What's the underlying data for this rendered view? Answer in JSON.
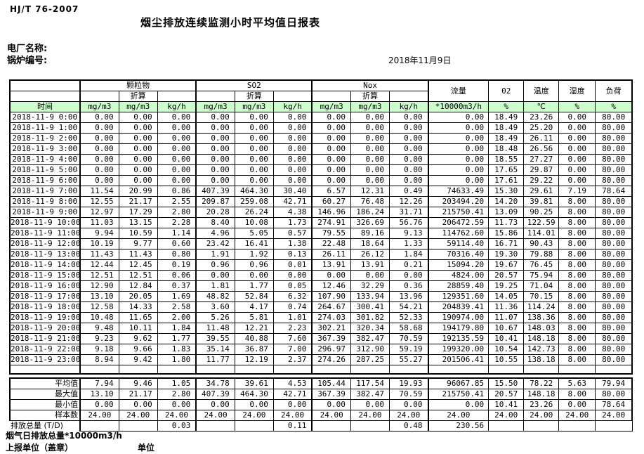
{
  "page": {
    "standard": "HJ/T  76-2007",
    "title": "烟尘排放连续监测小时平均值日报表",
    "plant_label": "电厂名称:",
    "boiler_label": "锅炉编号:",
    "date": "2018年11月9日"
  },
  "colors": {
    "header_green": "#ccffcc",
    "border": "#000000"
  },
  "table": {
    "groups": {
      "pm": "颗粒物",
      "so2": "SO2",
      "nox": "Nox",
      "flow": "流量",
      "o2": "02",
      "temp": "温度",
      "humidity": "湿度",
      "load": "负荷"
    },
    "subheader": {
      "converted": "折算"
    },
    "units": {
      "time": "时间",
      "mg": "mg/m3",
      "kgh": "kg/h",
      "flow": "*10000m3/h",
      "percent": "%",
      "celsius": "℃"
    },
    "rows": [
      [
        "2018-11-9 0:00",
        "0.00",
        "0.00",
        "0.00",
        "0.00",
        "0.00",
        "0.00",
        "0.00",
        "0.00",
        "0.00",
        "0.00",
        "18.49",
        "23.26",
        "0.00",
        "80.00"
      ],
      [
        "2018-11-9 1:00",
        "0.00",
        "0.00",
        "0.00",
        "0.00",
        "0.00",
        "0.00",
        "0.00",
        "0.00",
        "0.00",
        "0.00",
        "18.49",
        "25.20",
        "0.00",
        "80.00"
      ],
      [
        "2018-11-9 2:00",
        "0.00",
        "0.00",
        "0.00",
        "0.00",
        "0.00",
        "0.00",
        "0.00",
        "0.00",
        "0.00",
        "0.00",
        "18.49",
        "26.11",
        "0.00",
        "80.00"
      ],
      [
        "2018-11-9 3:00",
        "0.00",
        "0.00",
        "0.00",
        "0.00",
        "0.00",
        "0.00",
        "0.00",
        "0.00",
        "0.00",
        "0.00",
        "18.48",
        "26.56",
        "0.00",
        "80.00"
      ],
      [
        "2018-11-9 4:00",
        "0.00",
        "0.00",
        "0.00",
        "0.00",
        "0.00",
        "0.00",
        "0.00",
        "0.00",
        "0.00",
        "0.00",
        "18.55",
        "27.27",
        "0.00",
        "80.00"
      ],
      [
        "2018-11-9 5:00",
        "0.00",
        "0.00",
        "0.00",
        "0.00",
        "0.00",
        "0.00",
        "0.00",
        "0.00",
        "0.00",
        "0.00",
        "17.65",
        "29.87",
        "0.00",
        "80.00"
      ],
      [
        "2018-11-9 6:00",
        "0.00",
        "0.00",
        "0.00",
        "0.00",
        "0.00",
        "0.00",
        "0.00",
        "0.00",
        "0.00",
        "0.00",
        "17.61",
        "29.22",
        "0.00",
        "80.00"
      ],
      [
        "2018-11-9 7:00",
        "11.54",
        "20.99",
        "0.86",
        "407.39",
        "464.30",
        "30.40",
        "6.57",
        "12.31",
        "0.49",
        "74633.49",
        "15.30",
        "29.61",
        "7.19",
        "78.64"
      ],
      [
        "2018-11-9 8:00",
        "12.55",
        "21.17",
        "2.55",
        "209.87",
        "259.08",
        "42.71",
        "60.27",
        "76.48",
        "12.26",
        "203494.20",
        "14.20",
        "39.81",
        "8.00",
        "80.00"
      ],
      [
        "2018-11-9 9:00",
        "12.97",
        "17.29",
        "2.80",
        "20.28",
        "26.24",
        "4.38",
        "146.96",
        "186.24",
        "31.71",
        "215750.41",
        "13.09",
        "90.25",
        "8.00",
        "80.00"
      ],
      [
        "2018-11-9 10:00",
        "11.03",
        "13.15",
        "2.28",
        "8.40",
        "10.08",
        "1.73",
        "274.91",
        "326.69",
        "56.76",
        "206472.59",
        "11.73",
        "122.59",
        "8.00",
        "80.00"
      ],
      [
        "2018-11-9 11:00",
        "9.94",
        "10.59",
        "1.14",
        "4.96",
        "5.05",
        "0.57",
        "79.55",
        "89.16",
        "9.13",
        "114762.60",
        "15.86",
        "114.01",
        "8.00",
        "80.00"
      ],
      [
        "2018-11-9 12:00",
        "10.19",
        "9.77",
        "0.60",
        "23.42",
        "16.41",
        "1.38",
        "22.48",
        "18.64",
        "1.33",
        "59114.40",
        "16.71",
        "90.43",
        "8.00",
        "80.00"
      ],
      [
        "2018-11-9 13:00",
        "11.43",
        "11.43",
        "0.80",
        "1.91",
        "1.92",
        "0.13",
        "26.11",
        "26.12",
        "1.84",
        "70316.40",
        "19.30",
        "79.88",
        "8.00",
        "80.00"
      ],
      [
        "2018-11-9 14:00",
        "12.44",
        "12.45",
        "0.19",
        "0.96",
        "0.96",
        "0.01",
        "13.91",
        "13.91",
        "0.21",
        "15094.20",
        "19.67",
        "76.45",
        "8.00",
        "80.00"
      ],
      [
        "2018-11-9 15:00",
        "12.51",
        "12.51",
        "0.06",
        "0.00",
        "0.00",
        "0.00",
        "0.00",
        "0.00",
        "0.00",
        "4824.00",
        "20.57",
        "75.94",
        "8.00",
        "80.00"
      ],
      [
        "2018-11-9 16:00",
        "12.90",
        "12.84",
        "0.37",
        "1.81",
        "1.77",
        "0.05",
        "12.46",
        "32.29",
        "0.36",
        "28859.40",
        "19.25",
        "71.04",
        "8.00",
        "80.00"
      ],
      [
        "2018-11-9 17:00",
        "13.10",
        "20.05",
        "1.69",
        "48.82",
        "52.84",
        "6.32",
        "107.90",
        "133.94",
        "13.96",
        "129351.60",
        "14.05",
        "70.15",
        "8.00",
        "80.00"
      ],
      [
        "2018-11-9 18:00",
        "12.58",
        "14.33",
        "2.58",
        "3.60",
        "4.17",
        "0.74",
        "264.67",
        "300.41",
        "54.21",
        "204839.41",
        "11.36",
        "114.24",
        "8.00",
        "80.00"
      ],
      [
        "2018-11-9 19:00",
        "10.48",
        "11.65",
        "2.00",
        "5.26",
        "5.81",
        "1.01",
        "274.03",
        "301.82",
        "52.33",
        "190974.00",
        "11.07",
        "138.36",
        "8.00",
        "80.00"
      ],
      [
        "2018-11-9 20:00",
        "9.48",
        "10.11",
        "1.84",
        "11.48",
        "12.21",
        "2.23",
        "302.21",
        "320.34",
        "58.68",
        "194179.80",
        "10.67",
        "148.03",
        "8.00",
        "80.00"
      ],
      [
        "2018-11-9 21:00",
        "9.23",
        "9.62",
        "1.77",
        "39.55",
        "40.88",
        "7.60",
        "367.39",
        "382.47",
        "70.59",
        "192135.59",
        "10.41",
        "148.18",
        "8.00",
        "80.00"
      ],
      [
        "2018-11-9 22:00",
        "9.18",
        "9.66",
        "1.83",
        "35.14",
        "36.87",
        "7.00",
        "296.97",
        "312.90",
        "59.19",
        "199320.00",
        "10.54",
        "142.73",
        "8.00",
        "80.00"
      ],
      [
        "2018-11-9 23:00",
        "8.94",
        "9.42",
        "1.80",
        "11.77",
        "12.19",
        "2.37",
        "274.26",
        "287.25",
        "55.27",
        "201506.41",
        "10.55",
        "138.18",
        "8.00",
        "80.00"
      ]
    ],
    "summary": [
      {
        "label": "平均值",
        "values": [
          "7.94",
          "9.46",
          "1.05",
          "34.78",
          "39.61",
          "4.53",
          "105.44",
          "117.54",
          "19.93",
          "96067.85",
          "15.50",
          "78.22",
          "5.63",
          "79.94"
        ]
      },
      {
        "label": "最大值",
        "values": [
          "13.10",
          "21.17",
          "2.80",
          "407.39",
          "464.30",
          "42.71",
          "367.39",
          "382.47",
          "70.59",
          "215750.41",
          "20.57",
          "148.18",
          "8.00",
          "80.00"
        ]
      },
      {
        "label": "最小值",
        "values": [
          "0.00",
          "0.00",
          "0.00",
          "0.00",
          "0.00",
          "0.00",
          "0.00",
          "0.00",
          "0.00",
          "0.00",
          "10.41",
          "23.26",
          "0.00",
          "78.64"
        ]
      },
      {
        "label": "样本数",
        "values": [
          "24.00",
          "24.00",
          "24.00",
          "24.00",
          "24.00",
          "24.00",
          "24.00",
          "24.00",
          "24.00",
          "24.00",
          "24.00",
          "24.00",
          "24.00",
          "24.00"
        ],
        "centered": true
      }
    ],
    "daily_total": {
      "label": "日排放总量 (T/D)",
      "values": [
        "",
        "",
        "0.03",
        "",
        "",
        "0.11",
        "",
        "",
        "0.48",
        "230.56",
        "",
        "",
        "",
        ""
      ]
    }
  },
  "footer": {
    "flue_note": "烟气日排放总量*10000m3/h",
    "report_unit": "上报单位（盖章）",
    "unit_label": "单位"
  }
}
